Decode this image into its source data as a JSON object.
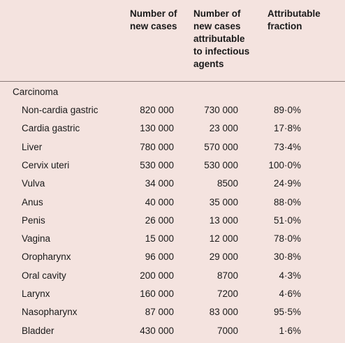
{
  "headers": {
    "col1": "Number of\nnew cases",
    "col2": "Number of\nnew cases\nattributable\nto infectious\nagents",
    "col3": "Attributable\nfraction"
  },
  "section_label": "Carcinoma",
  "rows": [
    {
      "site": "Non-cardia gastric",
      "new_cases": "820 000",
      "attributable": "730 000",
      "fraction": "89·0%"
    },
    {
      "site": "Cardia gastric",
      "new_cases": "130 000",
      "attributable": "23 000",
      "fraction": "17·8%"
    },
    {
      "site": "Liver",
      "new_cases": "780 000",
      "attributable": "570 000",
      "fraction": "73·4%"
    },
    {
      "site": "Cervix uteri",
      "new_cases": "530 000",
      "attributable": "530 000",
      "fraction": "100·0%"
    },
    {
      "site": "Vulva",
      "new_cases": "34 000",
      "attributable": "8500",
      "fraction": "24·9%"
    },
    {
      "site": "Anus",
      "new_cases": "40 000",
      "attributable": "35 000",
      "fraction": "88·0%"
    },
    {
      "site": "Penis",
      "new_cases": "26 000",
      "attributable": "13 000",
      "fraction": "51·0%"
    },
    {
      "site": "Vagina",
      "new_cases": "15 000",
      "attributable": "12 000",
      "fraction": "78·0%"
    },
    {
      "site": "Oropharynx",
      "new_cases": "96 000",
      "attributable": "29 000",
      "fraction": "30·8%"
    },
    {
      "site": "Oral cavity",
      "new_cases": "200 000",
      "attributable": "8700",
      "fraction": "4·3%"
    },
    {
      "site": "Larynx",
      "new_cases": "160 000",
      "attributable": "7200",
      "fraction": "4·6%"
    },
    {
      "site": "Nasopharynx",
      "new_cases": "87 000",
      "attributable": "83 000",
      "fraction": "95·5%"
    },
    {
      "site": "Bladder",
      "new_cases": "430 000",
      "attributable": "7000",
      "fraction": "1·6%"
    }
  ]
}
